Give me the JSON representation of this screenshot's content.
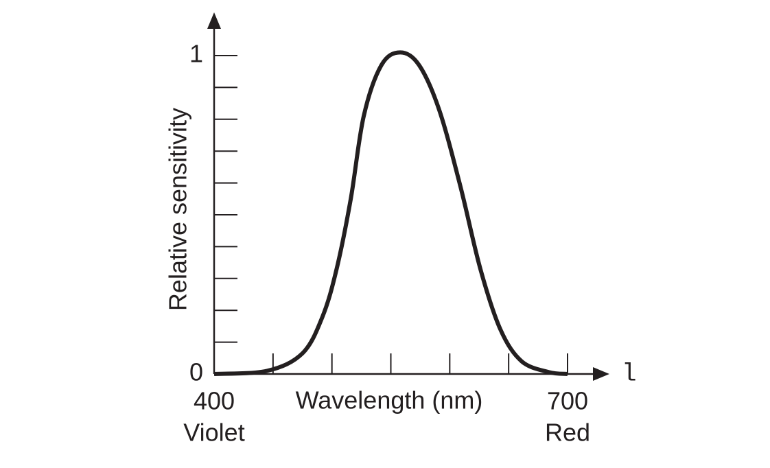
{
  "chart_data": {
    "type": "line",
    "x_label": "Wavelength (nm)",
    "y_label": "Relative sensitivity",
    "x_axis_symbol": "l",
    "x": [
      400,
      445,
      475,
      492,
      504,
      516,
      527,
      542,
      558,
      574,
      591,
      609,
      626,
      643,
      661,
      684,
      700
    ],
    "series": [
      {
        "color": "#231f20",
        "values": [
          0,
          0.01,
          0.065,
          0.18,
          0.33,
          0.55,
          0.81,
          0.97,
          1.01,
          0.97,
          0.83,
          0.59,
          0.33,
          0.14,
          0.04,
          0.006,
          0
        ]
      }
    ],
    "xlim": [
      400,
      700
    ],
    "ylim": [
      0,
      1
    ],
    "xticks": [
      400,
      700
    ],
    "x_tick_sublabels": [
      "Violet",
      "Red"
    ],
    "yticks": [
      0,
      1
    ],
    "x_minor_ticks": [
      450,
      500,
      550,
      600,
      650
    ],
    "y_minor_ticks": [
      0.1,
      0.2,
      0.3,
      0.4,
      0.5,
      0.6,
      0.7,
      0.8,
      0.9
    ]
  }
}
